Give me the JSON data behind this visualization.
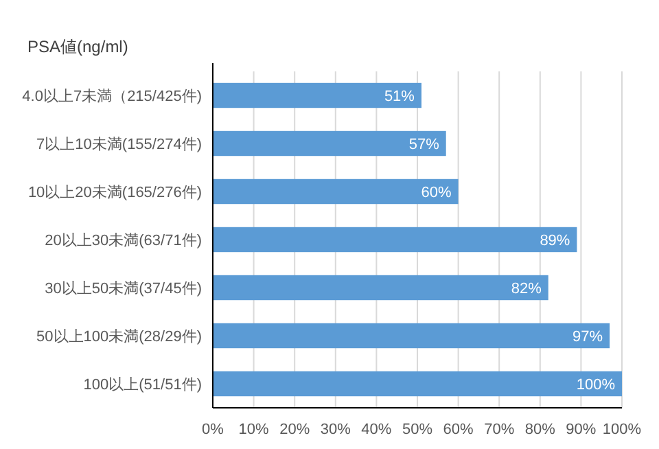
{
  "chart_data": {
    "type": "bar",
    "orientation": "horizontal",
    "ylabel": "PSA値(ng/ml)",
    "categories": [
      "4.0以上7未満（215/425件)",
      "7以上10未満(155/274件)",
      "10以上20未満(165/276件)",
      "20以上30未満(63/71件)",
      "30以上50未満(37/45件)",
      "50以上100未満(28/29件)",
      "100以上(51/51件)"
    ],
    "values": [
      51,
      57,
      60,
      89,
      82,
      97,
      100
    ],
    "value_labels": [
      "51%",
      "57%",
      "60%",
      "89%",
      "82%",
      "97%",
      "100%"
    ],
    "color": "#5b9bd5",
    "xlim": [
      0,
      100
    ],
    "xticks": [
      {
        "value": 0,
        "label": "0%"
      },
      {
        "value": 10,
        "label": "10%"
      },
      {
        "value": 20,
        "label": "20%"
      },
      {
        "value": 30,
        "label": "30%"
      },
      {
        "value": 40,
        "label": "40%"
      },
      {
        "value": 50,
        "label": "50%"
      },
      {
        "value": 60,
        "label": "60%"
      },
      {
        "value": 70,
        "label": "70%"
      },
      {
        "value": 80,
        "label": "80%"
      },
      {
        "value": 90,
        "label": "90%"
      },
      {
        "value": 100,
        "label": "100%"
      }
    ],
    "grid": "x"
  }
}
